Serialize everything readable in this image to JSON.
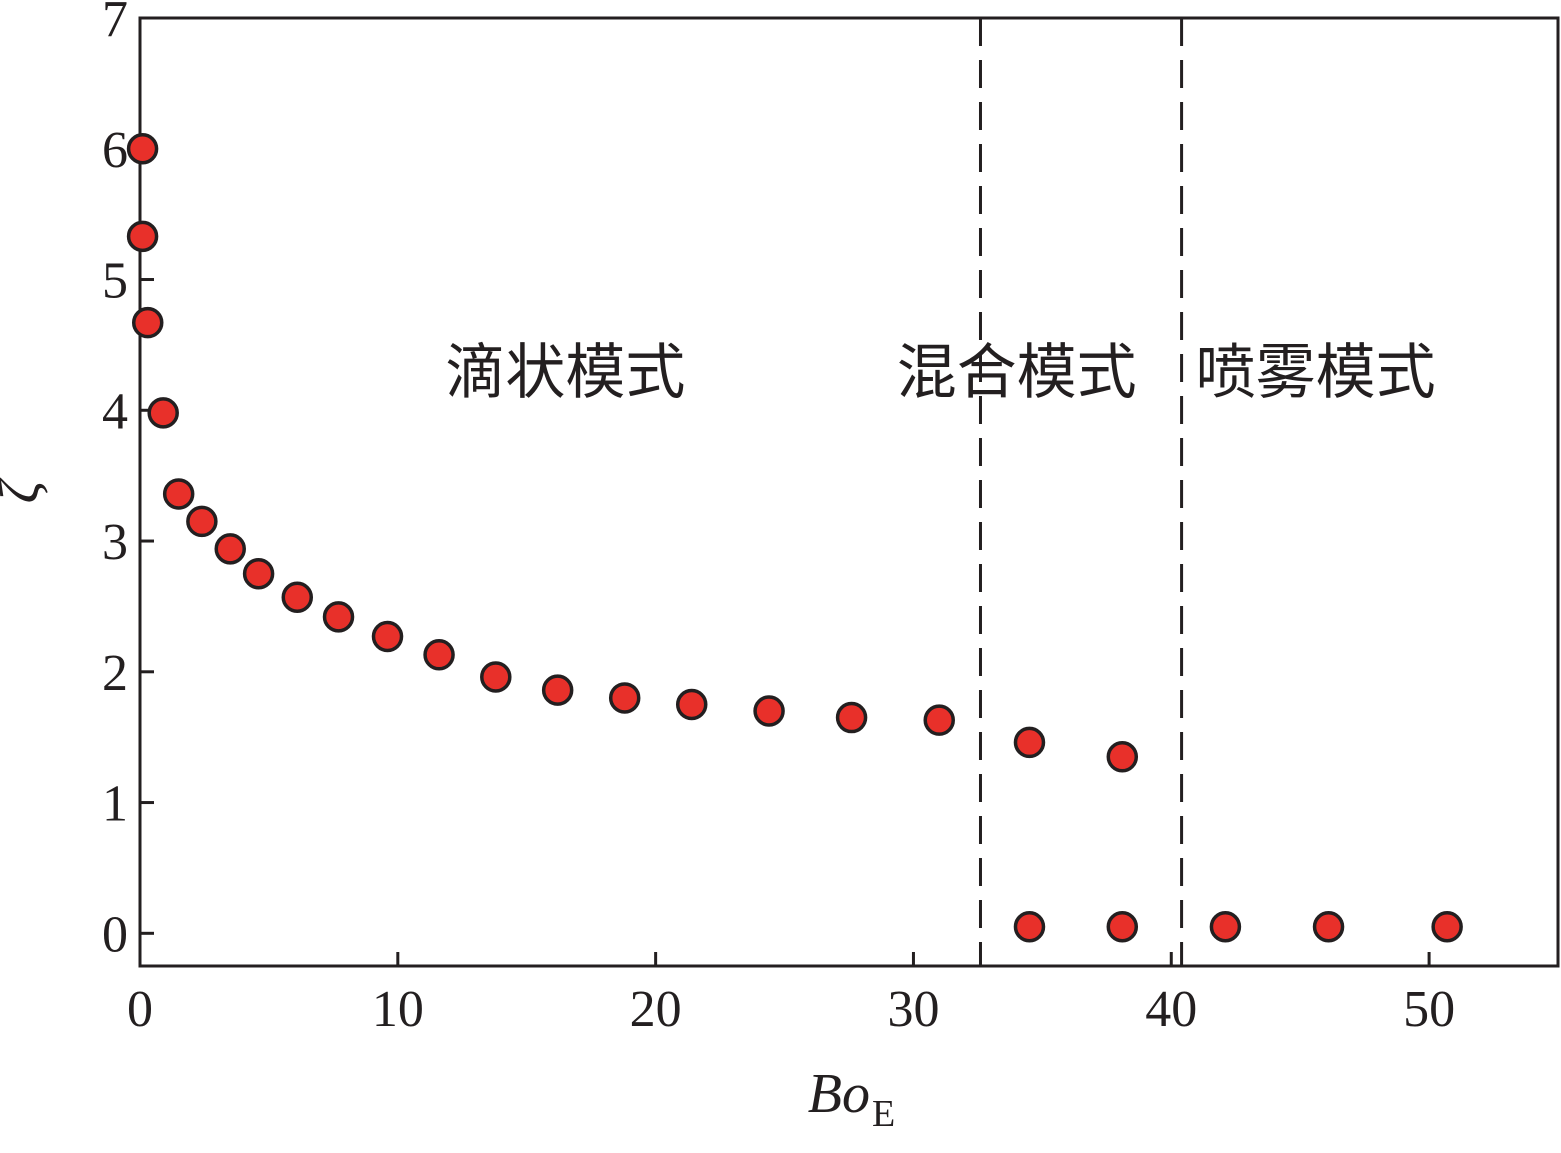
{
  "chart_data": {
    "type": "scatter",
    "title": "",
    "xlabel": "Bo",
    "xlabel_subscript": "E",
    "ylabel": "ζ",
    "xlim": [
      0,
      55
    ],
    "ylim": [
      -0.25,
      7
    ],
    "x_ticks": [
      0,
      10,
      20,
      30,
      40,
      50
    ],
    "y_ticks": [
      0,
      1,
      2,
      3,
      4,
      5,
      6,
      7
    ],
    "x_tick_labels": [
      "0",
      "10",
      "20",
      "30",
      "40",
      "50"
    ],
    "y_tick_labels": [
      "0",
      "1",
      "2",
      "3",
      "4",
      "5",
      "6",
      "7"
    ],
    "grid": false,
    "marker_color": "#e8302a",
    "marker_edge_color": "#231f20",
    "mode_boundaries": [
      32.6,
      40.4
    ],
    "mode_labels": [
      {
        "text": "滴状模式",
        "x": 16.5,
        "y": 4.3
      },
      {
        "text": "混合模式",
        "x": 34.0,
        "y": 4.3
      },
      {
        "text": "喷雾模式",
        "x": 45.6,
        "y": 4.3
      }
    ],
    "series": [
      {
        "x": [
          0.1,
          0.1,
          0.3,
          0.9,
          1.5,
          2.4,
          3.5,
          4.6,
          6.1,
          7.7,
          9.6,
          11.6,
          13.8,
          16.2,
          18.8,
          21.4,
          24.4,
          27.6,
          31.0,
          34.5,
          38.1,
          34.5,
          38.1,
          42.1,
          46.1,
          50.7
        ],
        "y": [
          6.0,
          5.33,
          4.67,
          3.98,
          3.36,
          3.15,
          2.94,
          2.75,
          2.57,
          2.42,
          2.27,
          2.13,
          1.96,
          1.86,
          1.8,
          1.75,
          1.7,
          1.65,
          1.63,
          1.46,
          1.35,
          0.05,
          0.05,
          0.05,
          0.05,
          0.05
        ]
      }
    ]
  }
}
